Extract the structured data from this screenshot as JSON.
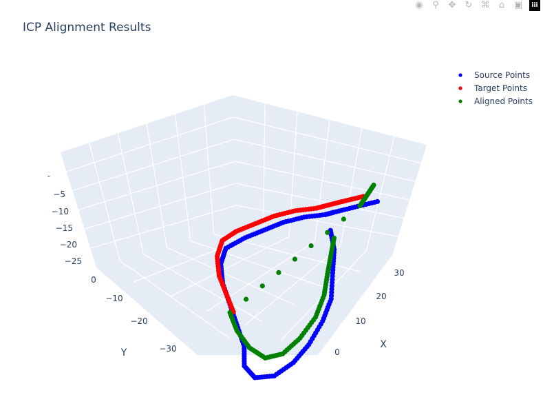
{
  "toolbar": {
    "icons": [
      "camera-icon",
      "zoom-icon",
      "pan-icon",
      "orbit-icon",
      "turntable-icon",
      "home-icon",
      "camera-view-icon",
      "plotly-logo-icon"
    ]
  },
  "chart_data": {
    "type": "scatter3d",
    "title": "ICP Alignment Results",
    "axes": {
      "x": {
        "label": "X",
        "ticks": [
          "0",
          "10",
          "20",
          "30"
        ]
      },
      "y": {
        "label": "Y",
        "ticks": [
          "0",
          "−10",
          "−20",
          "−30"
        ]
      },
      "z": {
        "label": "",
        "ticks": [
          "−5",
          "−10",
          "−15",
          "−20",
          "−25"
        ]
      }
    },
    "legend": {
      "position": "top-right"
    },
    "series": [
      {
        "name": "Source Points",
        "color": "#0000ff",
        "points": [
          [
            32,
            -2,
            -4
          ],
          [
            28,
            -1,
            -5
          ],
          [
            24,
            -1,
            -5
          ],
          [
            22,
            -2,
            -4
          ],
          [
            18,
            -2,
            -3
          ],
          [
            14,
            -2,
            -3
          ],
          [
            10,
            -3,
            -3
          ],
          [
            6,
            -4,
            -3
          ],
          [
            2,
            -5,
            -4
          ],
          [
            0,
            -8,
            -6
          ],
          [
            -1,
            -12,
            -9
          ],
          [
            -1,
            -16,
            -13
          ],
          [
            -1,
            -20,
            -17
          ],
          [
            -1,
            -24,
            -21
          ],
          [
            -2,
            -27,
            -25
          ],
          [
            -1,
            -30,
            -27
          ],
          [
            2,
            -32,
            -26
          ],
          [
            6,
            -31,
            -24
          ],
          [
            10,
            -28,
            -22
          ],
          [
            14,
            -24,
            -19
          ],
          [
            17,
            -20,
            -16
          ],
          [
            19,
            -15,
            -12
          ],
          [
            21,
            -10,
            -9
          ],
          [
            22,
            -5,
            -7
          ]
        ]
      },
      {
        "name": "Target Points",
        "color": "#ff0000",
        "points": [
          [
            30,
            0,
            -3
          ],
          [
            27,
            1,
            -4
          ],
          [
            24,
            1,
            -4
          ],
          [
            21,
            0,
            -3
          ],
          [
            17,
            0,
            -2
          ],
          [
            13,
            0,
            -2
          ],
          [
            9,
            -1,
            -2
          ],
          [
            5,
            -2,
            -2
          ],
          [
            2,
            -3,
            -3
          ],
          [
            0,
            -6,
            -5
          ],
          [
            -1,
            -10,
            -8
          ],
          [
            -1,
            -14,
            -11
          ],
          [
            -1,
            -18,
            -14
          ]
        ]
      },
      {
        "name": "Aligned Points",
        "color": "#008000",
        "points": [
          [
            33,
            3,
            -3
          ],
          [
            31,
            1,
            -4
          ],
          [
            29,
            -1,
            -5
          ],
          [
            -1,
            -16,
            -16
          ],
          [
            -1,
            -20,
            -19
          ],
          [
            0,
            -24,
            -22
          ],
          [
            2,
            -27,
            -24
          ],
          [
            5,
            -28,
            -23
          ],
          [
            9,
            -26,
            -21
          ],
          [
            13,
            -23,
            -18
          ],
          [
            16,
            -19,
            -15
          ],
          [
            18,
            -15,
            -12
          ],
          [
            20,
            -11,
            -10
          ],
          [
            22,
            -7,
            -8
          ]
        ]
      }
    ]
  }
}
